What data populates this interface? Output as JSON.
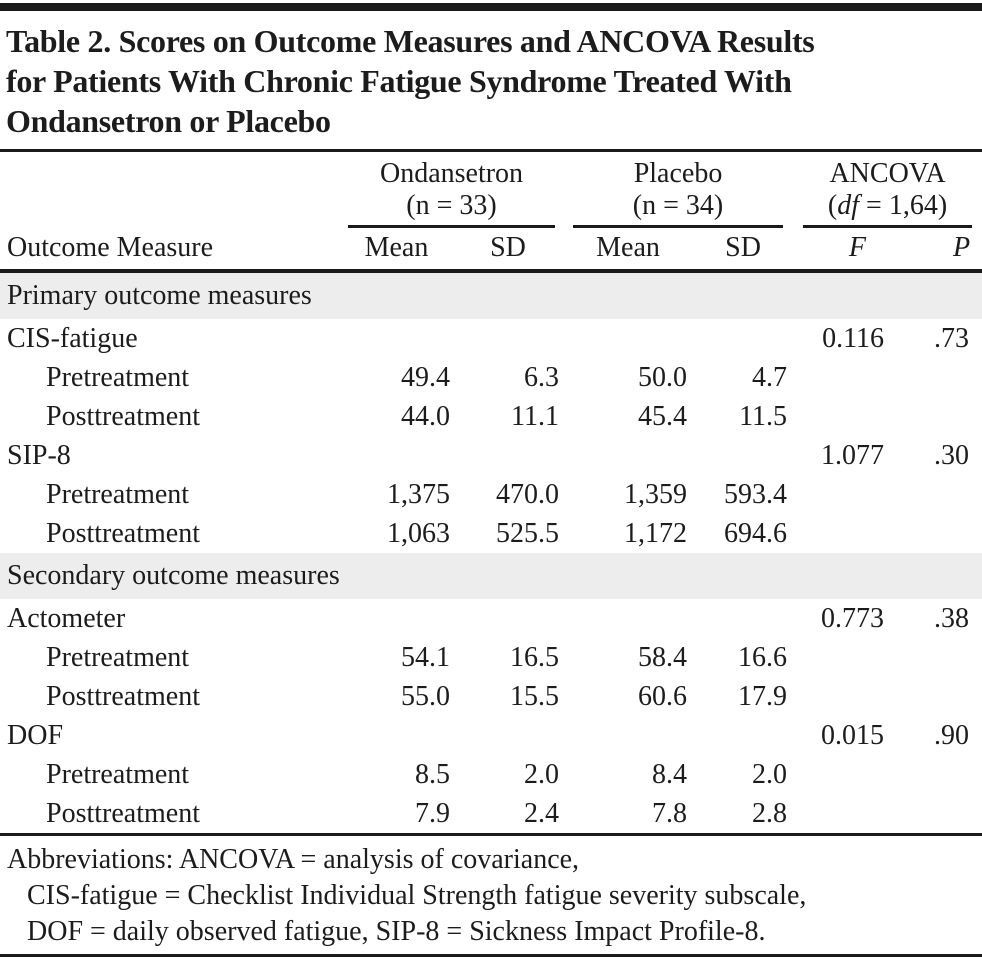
{
  "colors": {
    "text": "#1c1c1c",
    "rule": "#1a1a1a",
    "section_bg": "#ededed",
    "page_bg": "#ffffff"
  },
  "title": {
    "lines": [
      "Table 2. Scores on Outcome Measures and ANCOVA Results",
      "for Patients With Chronic Fatigue Syndrome Treated With",
      "Ondansetron or Placebo"
    ]
  },
  "header": {
    "row_label": "Outcome Measure",
    "groups": [
      {
        "name": "Ondansetron",
        "sub": "(n = 33)"
      },
      {
        "name": "Placebo",
        "sub": "(n = 34)"
      },
      {
        "name": "ANCOVA",
        "sub_pre": "(",
        "sub_italic": "df",
        "sub_post": " = 1,64)"
      }
    ],
    "columns": {
      "mean1": "Mean",
      "sd1": "SD",
      "mean2": "Mean",
      "sd2": "SD",
      "f": "F",
      "p": "P"
    }
  },
  "table": {
    "rows": [
      {
        "type": "section",
        "label": "Primary outcome measures"
      },
      {
        "type": "measure",
        "label": "CIS-fatigue",
        "f": "0.116",
        "p": ".73"
      },
      {
        "type": "sub",
        "label": "Pretreatment",
        "m1": "49.4",
        "sd1": "6.3",
        "m2": "50.0",
        "sd2": "4.7"
      },
      {
        "type": "sub",
        "label": "Posttreatment",
        "m1": "44.0",
        "sd1": "11.1",
        "m2": "45.4",
        "sd2": "11.5"
      },
      {
        "type": "measure",
        "label": "SIP-8",
        "f": "1.077",
        "p": ".30"
      },
      {
        "type": "sub",
        "label": "Pretreatment",
        "m1": "1,375",
        "sd1": "470.0",
        "m2": "1,359",
        "sd2": "593.4"
      },
      {
        "type": "sub",
        "label": "Posttreatment",
        "m1": "1,063",
        "sd1": "525.5",
        "m2": "1,172",
        "sd2": "694.6"
      },
      {
        "type": "section",
        "label": "Secondary outcome measures"
      },
      {
        "type": "measure",
        "label": "Actometer",
        "f": "0.773",
        "p": ".38"
      },
      {
        "type": "sub",
        "label": "Pretreatment",
        "m1": "54.1",
        "sd1": "16.5",
        "m2": "58.4",
        "sd2": "16.6"
      },
      {
        "type": "sub",
        "label": "Posttreatment",
        "m1": "55.0",
        "sd1": "15.5",
        "m2": "60.6",
        "sd2": "17.9"
      },
      {
        "type": "measure",
        "label": "DOF",
        "f": "0.015",
        "p": ".90"
      },
      {
        "type": "sub",
        "label": "Pretreatment",
        "m1": "8.5",
        "sd1": "2.0",
        "m2": "8.4",
        "sd2": "2.0"
      },
      {
        "type": "sub",
        "label": "Posttreatment",
        "m1": "7.9",
        "sd1": "2.4",
        "m2": "7.8",
        "sd2": "2.8"
      }
    ]
  },
  "footnote": {
    "lines": [
      "Abbreviations: ANCOVA = analysis of covariance,",
      "CIS-fatigue = Checklist Individual Strength fatigue severity subscale,",
      "DOF = daily observed fatigue, SIP-8 = Sickness Impact Profile-8."
    ]
  }
}
